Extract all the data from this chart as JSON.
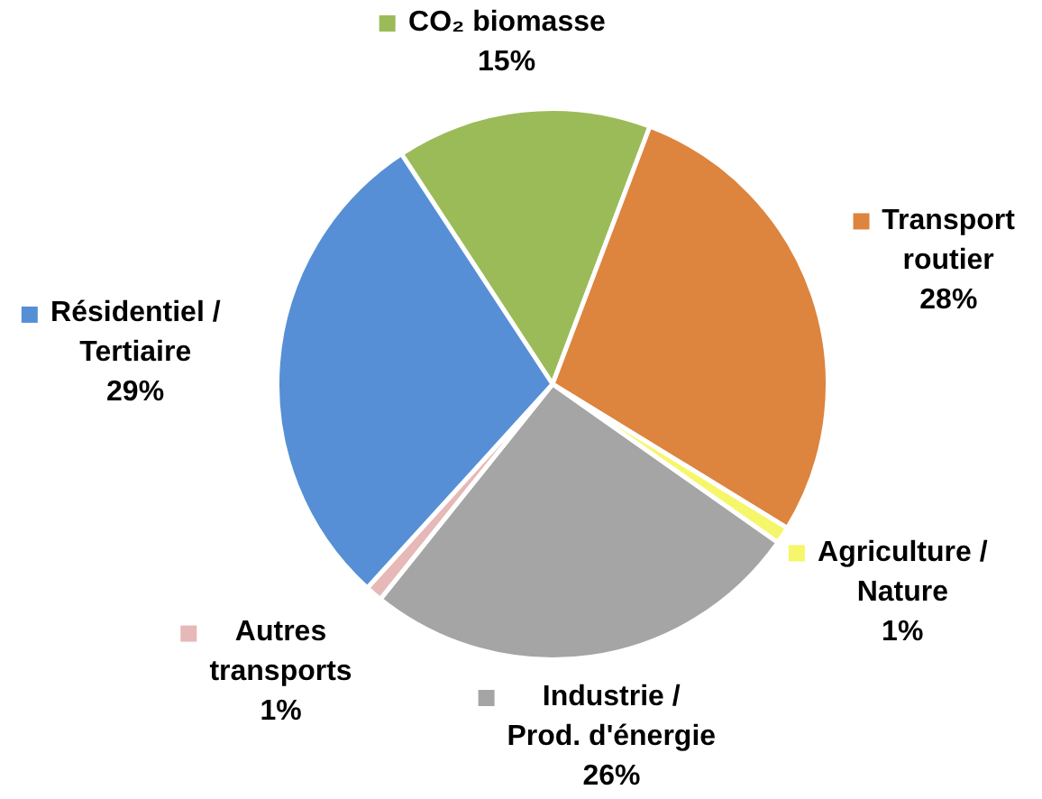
{
  "chart_data": {
    "type": "pie",
    "categories": [
      "CO₂ biomasse",
      "Transport\nroutier",
      "Agriculture /\nNature",
      "Industrie /\nProd. d'énergie",
      "Autres\ntransports",
      "Résidentiel /\nTertiaire"
    ],
    "values": [
      15,
      28,
      1,
      26,
      1,
      29
    ],
    "value_labels": [
      "15%",
      "28%",
      "1%",
      "26%",
      "1%",
      "29%"
    ],
    "colors": [
      "#9bbb59",
      "#dd843e",
      "#f6f66a",
      "#a5a5a5",
      "#e6b8b7",
      "#568fd5"
    ],
    "legend": true
  }
}
